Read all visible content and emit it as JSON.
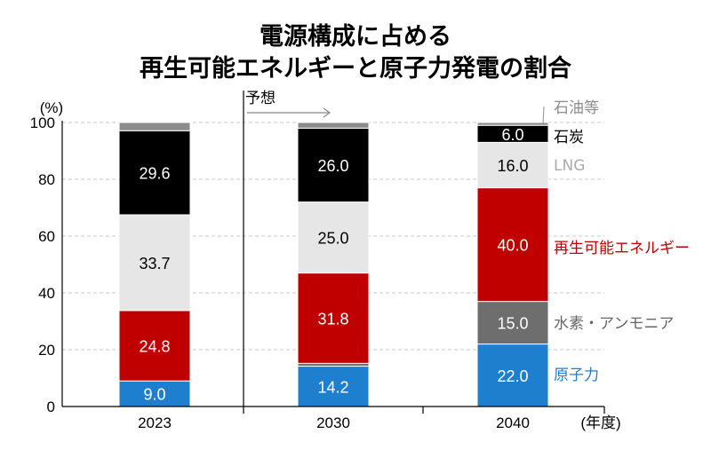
{
  "chart_data": {
    "type": "bar",
    "stacked": true,
    "title_lines": [
      "電源構成に占める",
      "再生可能エネルギーと原子力発電の割合"
    ],
    "ylabel": "(%)",
    "xlabel": "(年度)",
    "ylim": [
      0,
      100
    ],
    "yticks": [
      0,
      20,
      40,
      60,
      80,
      100
    ],
    "categories": [
      "2023",
      "2030",
      "2040"
    ],
    "forecast_label": "予想",
    "series": [
      {
        "name": "原子力",
        "color": "#1f7fcf",
        "text_color": "#ffffff",
        "legend_color": "#1f7fcf",
        "values": [
          9.0,
          14.2,
          22.0
        ],
        "labels": [
          "9.0",
          "14.2",
          "22.0"
        ]
      },
      {
        "name": "水素・アンモニア",
        "color": "#6e6e6e",
        "text_color": "#ffffff",
        "legend_color": "#666666",
        "values": [
          0,
          1.0,
          15.0
        ],
        "labels": [
          "",
          "",
          "15.0"
        ]
      },
      {
        "name": "再生可能エネルギー",
        "color": "#c00000",
        "text_color": "#ffffff",
        "legend_color": "#c00000",
        "values": [
          24.8,
          31.8,
          40.0
        ],
        "labels": [
          "24.8",
          "31.8",
          "40.0"
        ]
      },
      {
        "name": "LNG",
        "color": "#e6e6e6",
        "text_color": "#000000",
        "legend_color": "#aaaaaa",
        "values": [
          33.7,
          25.0,
          16.0
        ],
        "labels": [
          "33.7",
          "25.0",
          "16.0"
        ]
      },
      {
        "name": "石炭",
        "color": "#000000",
        "text_color": "#ffffff",
        "legend_color": "#000000",
        "values": [
          29.6,
          26.0,
          6.0
        ],
        "labels": [
          "29.6",
          "26.0",
          "6.0"
        ]
      },
      {
        "name": "石油等",
        "color": "#8c8c8c",
        "text_color": "#ffffff",
        "legend_color": "#8c8c8c",
        "values": [
          2.9,
          2.0,
          1.0
        ],
        "labels": [
          "",
          "",
          ""
        ]
      }
    ]
  }
}
